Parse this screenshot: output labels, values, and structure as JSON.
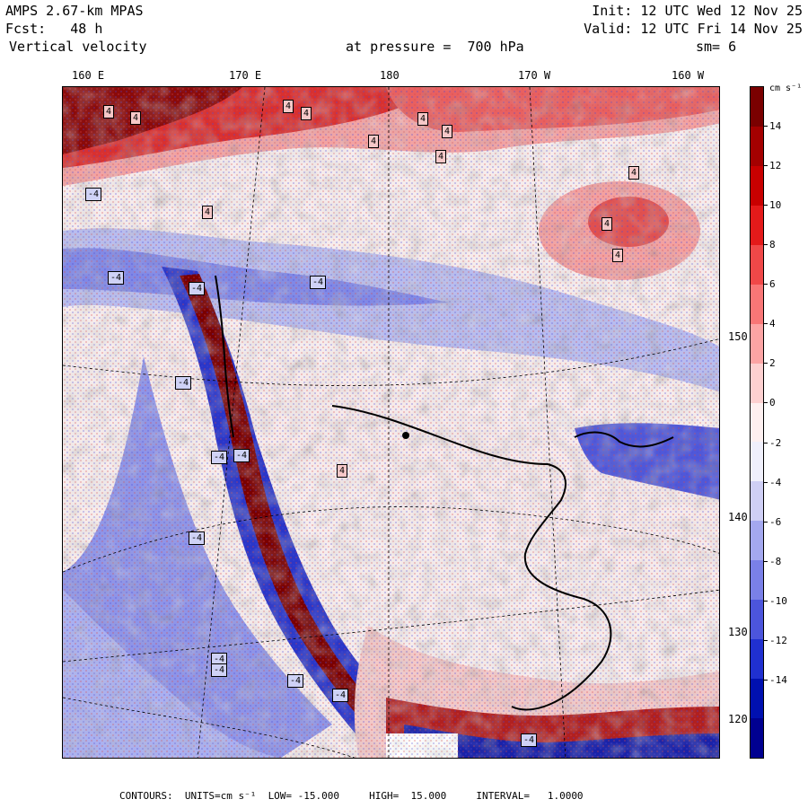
{
  "header": {
    "model": "AMPS 2.67-km MPAS",
    "forecast": "Fcst:   48 h",
    "field": "Vertical velocity",
    "level": "at pressure =  700 hPa",
    "init": "Init: 12 UTC Wed 12 Nov 25",
    "valid": "Valid: 12 UTC Fri 14 Nov 25",
    "smoothing": "sm= 6"
  },
  "longitude_labels": [
    "160 E",
    "170 E",
    "180",
    "170 W",
    "160 W"
  ],
  "latitude_labels": [
    "150 W",
    "140 W",
    "130 W",
    "120 W"
  ],
  "colorbar": {
    "units": "cm s⁻¹",
    "ticks": [
      "14",
      "12",
      "10",
      "8",
      "6",
      "4",
      "2",
      "0",
      "-2",
      "-4",
      "-6",
      "-8",
      "-10",
      "-12",
      "-14"
    ],
    "colors": [
      "#7a0000",
      "#a40000",
      "#c80000",
      "#e41a1a",
      "#f04848",
      "#f87676",
      "#fca4a4",
      "#fdd0d0",
      "#fef0f0",
      "#f0f0fc",
      "#cfcff5",
      "#a4a8ef",
      "#7a80e8",
      "#4c55dc",
      "#2030d0",
      "#0010b0",
      "#000090"
    ]
  },
  "footer": "CONTOURS:  UNITS=cm s⁻¹  LOW= -15.000     HIGH=  15.000     INTERVAL=   1.0000",
  "map_labels": [
    {
      "text": "4"
    },
    {
      "text": "4"
    },
    {
      "text": "4"
    },
    {
      "text": "4"
    },
    {
      "text": "4"
    },
    {
      "text": "4"
    },
    {
      "text": "4"
    },
    {
      "text": "4"
    },
    {
      "text": "4"
    },
    {
      "text": "4"
    },
    {
      "text": "4"
    },
    {
      "text": "4"
    },
    {
      "text": "4"
    },
    {
      "text": "-4"
    },
    {
      "text": "-4"
    },
    {
      "text": "-4"
    },
    {
      "text": "-4"
    },
    {
      "text": "-4"
    },
    {
      "text": "-4"
    },
    {
      "text": "-4"
    },
    {
      "text": "-4"
    },
    {
      "text": "-4"
    },
    {
      "text": "-4"
    },
    {
      "text": "-4"
    },
    {
      "text": "-4"
    },
    {
      "text": "-4"
    }
  ]
}
